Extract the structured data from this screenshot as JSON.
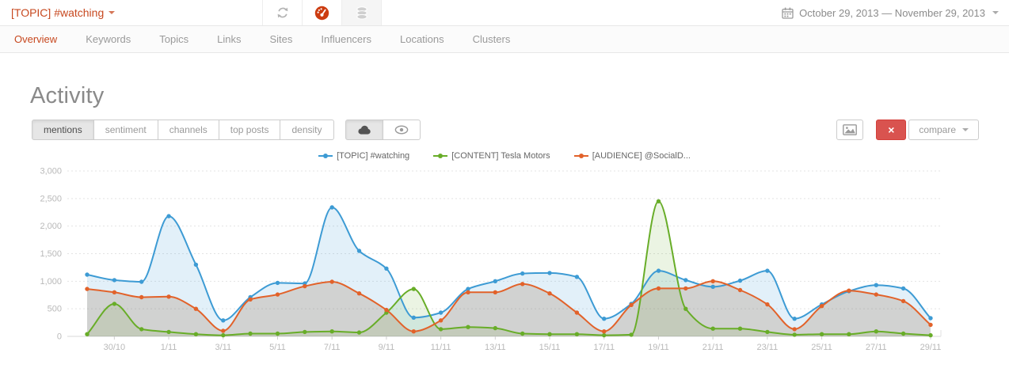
{
  "header": {
    "topic_selector": "[TOPIC] #watching",
    "toolbar_icons": [
      "refresh-icon",
      "gauge-icon",
      "database-icon"
    ],
    "calendar_icon": "calendar-icon",
    "date_range": "October 29, 2013 — November 29, 2013"
  },
  "nav": {
    "tabs": [
      "Overview",
      "Keywords",
      "Topics",
      "Links",
      "Sites",
      "Influencers",
      "Locations",
      "Clusters"
    ],
    "active_tab": "Overview"
  },
  "main": {
    "title": "Activity",
    "view_modes": [
      "mentions",
      "sentiment",
      "channels",
      "top posts",
      "density"
    ],
    "active_view_mode": "mentions",
    "display_toggles": [
      "cloud-icon",
      "eye-icon"
    ],
    "active_display_toggle": "cloud-icon",
    "export_image_icon": "image-icon",
    "remove_label": "×",
    "compare_label": "compare"
  },
  "colors": {
    "accent_red": "#c7481f",
    "danger_red": "#d9534f",
    "gauge_red": "#cc3c10"
  },
  "chart_data": {
    "type": "area",
    "title": "Activity — mentions over time",
    "xlabel": "",
    "ylabel": "",
    "ylim": [
      0,
      3000
    ],
    "y_tick_step": 500,
    "y_ticks": [
      "0",
      "500",
      "1,000",
      "1,500",
      "2,000",
      "2,500",
      "3,000"
    ],
    "grid": "horizontal-dashed",
    "legend_position": "top-center",
    "x": [
      "29/10",
      "30/10",
      "31/10",
      "1/11",
      "2/11",
      "3/11",
      "4/11",
      "5/11",
      "6/11",
      "7/11",
      "8/11",
      "9/11",
      "10/11",
      "11/11",
      "12/11",
      "13/11",
      "14/11",
      "15/11",
      "16/11",
      "17/11",
      "18/11",
      "19/11",
      "20/11",
      "21/11",
      "22/11",
      "23/11",
      "24/11",
      "25/11",
      "26/11",
      "27/11",
      "28/11",
      "29/11"
    ],
    "x_tick_labels": [
      "30/10",
      "1/11",
      "3/11",
      "5/11",
      "7/11",
      "9/11",
      "11/11",
      "13/11",
      "15/11",
      "17/11",
      "19/11",
      "21/11",
      "23/11",
      "25/11",
      "27/11",
      "29/11"
    ],
    "series": [
      {
        "name": "[TOPIC] #watching",
        "color": "#3d9bd4",
        "fill": "rgba(61,155,212,0.15)",
        "values": [
          1120,
          1020,
          990,
          2180,
          1300,
          290,
          710,
          970,
          960,
          2340,
          1550,
          1230,
          340,
          430,
          860,
          1000,
          1140,
          1150,
          1080,
          320,
          590,
          1190,
          1020,
          900,
          1010,
          1190,
          320,
          580,
          820,
          930,
          870,
          330
        ]
      },
      {
        "name": "[CONTENT] Tesla Motors",
        "color": "#68ad28",
        "fill": "rgba(104,173,40,0.13)",
        "values": [
          40,
          590,
          130,
          80,
          40,
          20,
          50,
          50,
          80,
          90,
          70,
          430,
          860,
          130,
          170,
          150,
          50,
          40,
          40,
          20,
          30,
          2450,
          500,
          140,
          140,
          80,
          30,
          40,
          40,
          90,
          50,
          20
        ]
      },
      {
        "name": "[AUDIENCE] @SocialD...",
        "color": "#e2622a",
        "fill": "rgba(150,105,70,0.22)",
        "values": [
          860,
          800,
          710,
          720,
          500,
          100,
          670,
          760,
          910,
          990,
          780,
          480,
          90,
          290,
          800,
          800,
          950,
          780,
          430,
          90,
          570,
          870,
          870,
          1000,
          840,
          580,
          130,
          550,
          830,
          760,
          640,
          210
        ]
      }
    ]
  }
}
